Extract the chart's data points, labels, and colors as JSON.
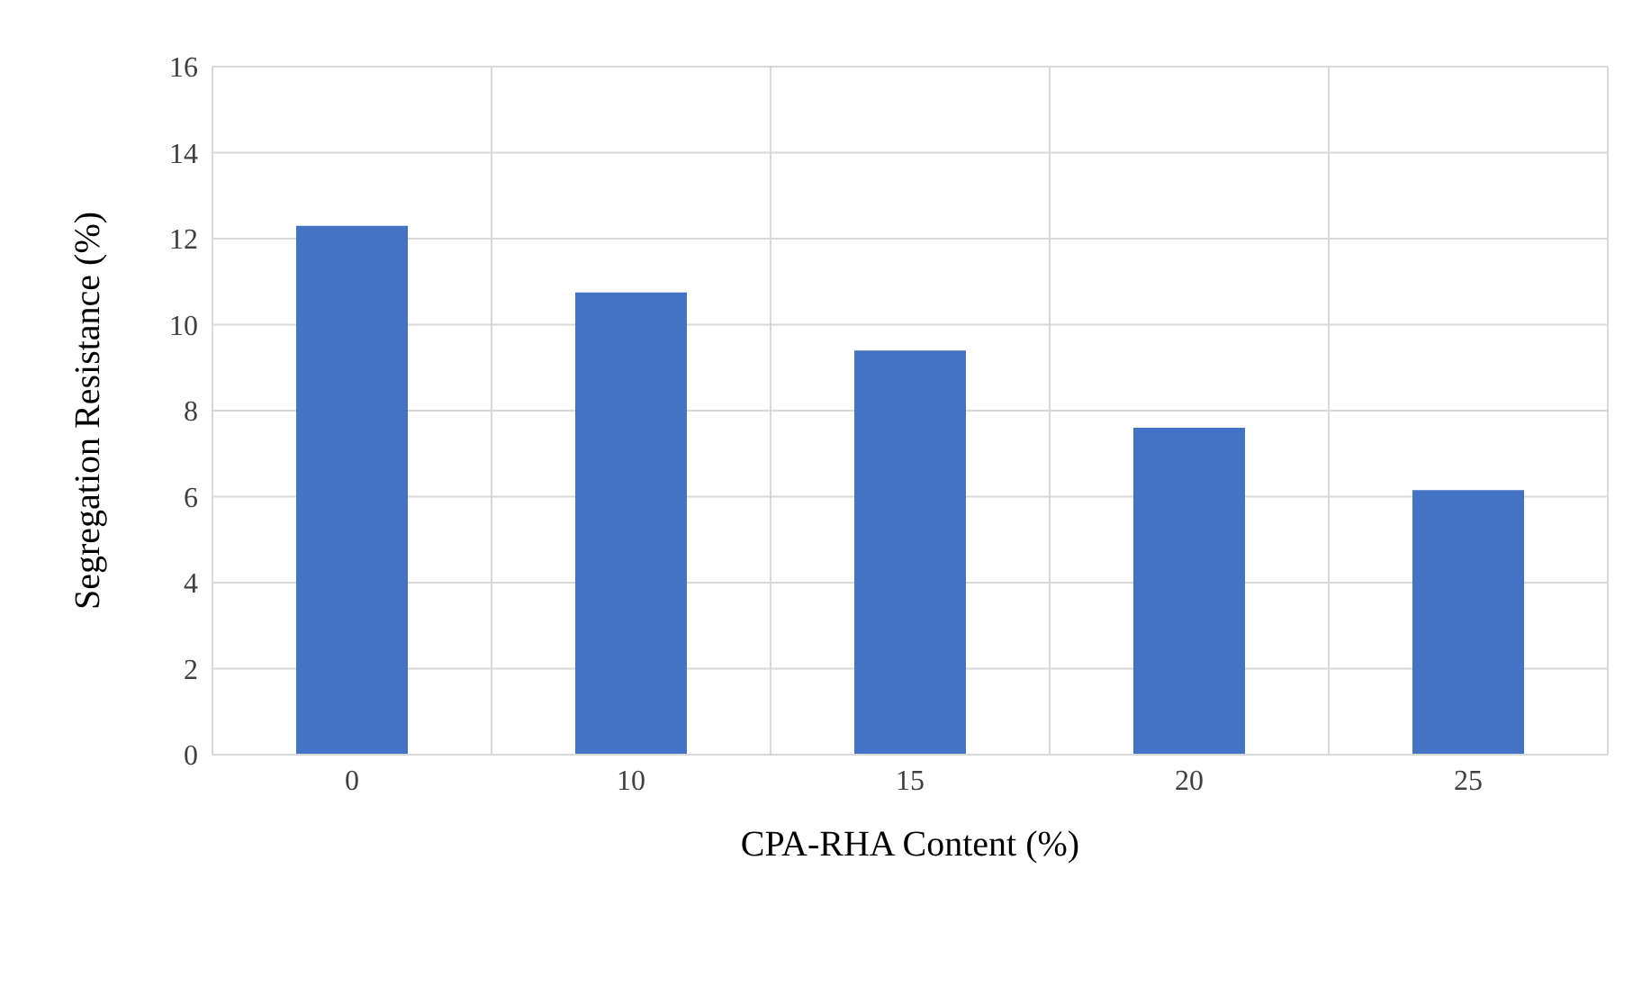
{
  "chart_data": {
    "type": "bar",
    "xlabel": "CPA-RHA Content (%)",
    "ylabel": "Segregation Resistance (%)",
    "categories": [
      "0",
      "10",
      "15",
      "20",
      "25"
    ],
    "values": [
      12.3,
      10.75,
      9.4,
      7.6,
      6.15
    ],
    "color": "#4472c4",
    "ylim": [
      0,
      16
    ],
    "yticks": [
      0,
      2,
      4,
      6,
      8,
      10,
      12,
      14,
      16
    ],
    "grid": true
  }
}
